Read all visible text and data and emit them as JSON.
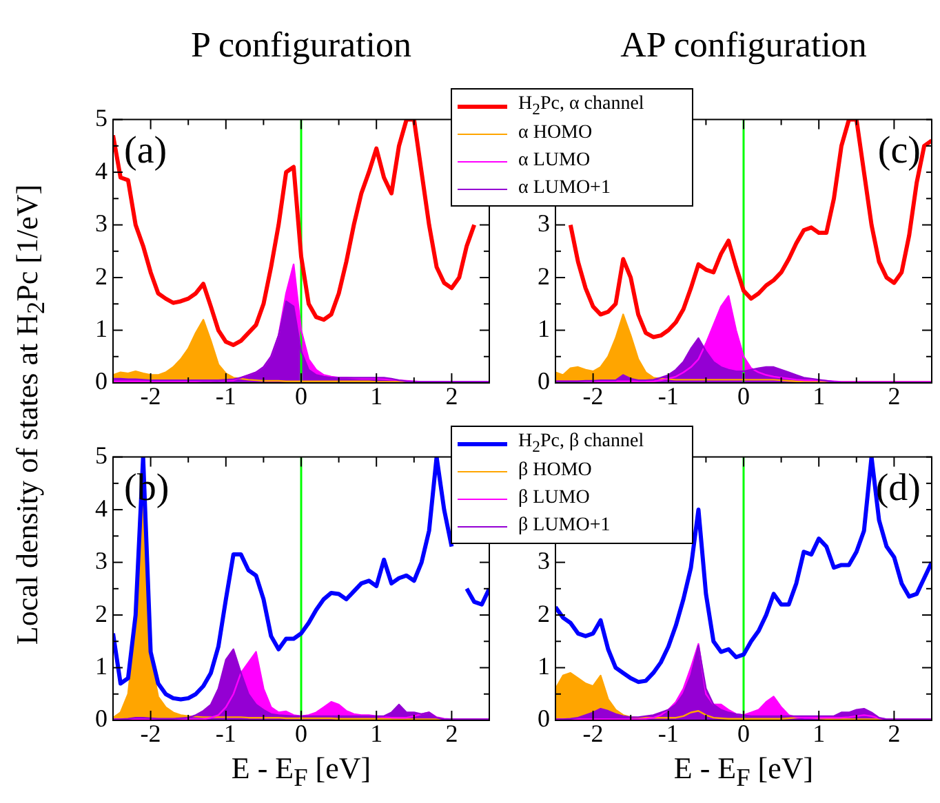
{
  "chart_data": [
    {
      "type": "line",
      "title": "P configuration",
      "ylabel": "Local density of states at H$_{2}$Pc [1/eV]",
      "annotations": [
        "(a)"
      ],
      "x": [
        -2.5,
        -2.4,
        -2.3,
        -2.2,
        -2.1,
        -2.0,
        -1.9,
        -1.8,
        -1.7,
        -1.6,
        -1.5,
        -1.4,
        -1.3,
        -1.2,
        -1.1,
        -1.0,
        -0.9,
        -0.8,
        -0.7,
        -0.6,
        -0.5,
        -0.4,
        -0.3,
        -0.2,
        -0.1,
        0,
        0.1,
        0.2,
        0.3,
        0.4,
        0.5,
        0.6,
        0.7,
        0.8,
        0.9,
        1.0,
        1.1,
        1.2,
        1.3,
        1.4,
        1.5,
        1.6,
        1.7,
        1.8,
        1.9,
        2.0,
        2.1,
        2.2,
        2.3,
        2.4,
        2.5
      ],
      "xlim": [
        -2.5,
        2.5
      ],
      "ylim": [
        0,
        5
      ],
      "xticks": [
        -2,
        {
          "value": -1.5,
          "label": null
        },
        -1,
        {
          "value": -0.5,
          "label": null
        },
        0,
        {
          "value": 0.5,
          "label": null
        },
        1,
        {
          "value": 1.5,
          "label": null
        },
        2
      ],
      "yticks": [
        0,
        {
          "value": 0.5,
          "label": null
        },
        1,
        {
          "value": 1.5,
          "label": null
        },
        2,
        {
          "value": 2.5,
          "label": null
        },
        3,
        {
          "value": 3.5,
          "label": null
        },
        4,
        {
          "value": 4.5,
          "label": null
        },
        5
      ],
      "ref_lines": [
        {
          "axis": "x",
          "value": 0,
          "color": "#00ff00"
        }
      ],
      "series": [
        {
          "type": "line",
          "color": "#ff0000",
          "values": [
            4.7,
            3.9,
            3.85,
            3.0,
            2.6,
            2.1,
            1.7,
            1.6,
            1.52,
            1.55,
            1.6,
            1.7,
            1.88,
            1.45,
            1.0,
            0.78,
            0.72,
            0.8,
            0.95,
            1.1,
            1.5,
            2.2,
            3.0,
            4.0,
            4.1,
            2.4,
            1.5,
            1.25,
            1.2,
            1.3,
            1.7,
            2.3,
            3.0,
            3.6,
            4.0,
            4.45,
            3.9,
            3.6,
            4.5,
            5,
            5,
            4.0,
            3.0,
            2.2,
            1.9,
            1.8,
            2.0,
            2.6,
            3.0,
            null,
            null
          ]
        },
        {
          "type": "area",
          "color": "#ffa500",
          "values": [
            0.15,
            0.2,
            0.18,
            0.22,
            0.18,
            0.15,
            0.15,
            0.2,
            0.3,
            0.45,
            0.65,
            0.95,
            1.2,
            0.8,
            0.35,
            0.18,
            0.1,
            0.08,
            0.06,
            0.05,
            0.04,
            0.04,
            0.04,
            0.03,
            0.03,
            0.03,
            0.03,
            0.03,
            0.03,
            0.03,
            0.03,
            0.03,
            0.03,
            0.03,
            0.03,
            0.02,
            0.02,
            0.02,
            0.02,
            0.02,
            0.01,
            0.01,
            0.01,
            0.01,
            0.01,
            0.01,
            0.01,
            0.01,
            0.01,
            0.01,
            0.01
          ]
        },
        {
          "type": "area",
          "color": "#ff00ff",
          "values": [
            0.03,
            0.03,
            0.03,
            0.03,
            0.03,
            0.03,
            0.03,
            0.03,
            0.03,
            0.03,
            0.03,
            0.03,
            0.04,
            0.04,
            0.05,
            0.05,
            0.05,
            0.1,
            0.15,
            0.2,
            0.3,
            0.5,
            0.9,
            1.7,
            2.25,
            1.0,
            0.45,
            0.25,
            0.15,
            0.12,
            0.1,
            0.1,
            0.09,
            0.08,
            0.08,
            0.08,
            0.07,
            0.06,
            0.05,
            0.04,
            0.03,
            0.02,
            0.02,
            0.02,
            0.02,
            0.02,
            0.02,
            0.02,
            0.02,
            0.02,
            0.02
          ]
        },
        {
          "type": "area",
          "color": "#9400d3",
          "values": [
            0.08,
            0.08,
            0.07,
            0.07,
            0.06,
            0.05,
            0.05,
            0.05,
            0.05,
            0.05,
            0.05,
            0.05,
            0.05,
            0.05,
            0.05,
            0.06,
            0.07,
            0.1,
            0.15,
            0.2,
            0.3,
            0.5,
            0.9,
            1.55,
            1.45,
            0.6,
            0.25,
            0.15,
            0.12,
            0.1,
            0.1,
            0.1,
            0.1,
            0.1,
            0.1,
            0.1,
            0.1,
            0.08,
            0.05,
            0.03,
            0.02,
            0.02,
            0.02,
            0.02,
            0.02,
            0.02,
            0.02,
            0.02,
            0.02,
            0.02,
            0.02
          ]
        }
      ]
    },
    {
      "type": "line",
      "title": "AP configuration",
      "annotations": [
        "(c)"
      ],
      "legend": "top left",
      "x": [
        -2.5,
        -2.4,
        -2.3,
        -2.2,
        -2.1,
        -2.0,
        -1.9,
        -1.8,
        -1.7,
        -1.6,
        -1.5,
        -1.4,
        -1.3,
        -1.2,
        -1.1,
        -1.0,
        -0.9,
        -0.8,
        -0.7,
        -0.6,
        -0.5,
        -0.4,
        -0.3,
        -0.2,
        -0.1,
        0,
        0.1,
        0.2,
        0.3,
        0.4,
        0.5,
        0.6,
        0.7,
        0.8,
        0.9,
        1.0,
        1.1,
        1.2,
        1.3,
        1.4,
        1.5,
        1.6,
        1.7,
        1.8,
        1.9,
        2.0,
        2.1,
        2.2,
        2.3,
        2.4,
        2.5
      ],
      "xlim": [
        -2.5,
        2.5
      ],
      "ylim": [
        0,
        5
      ],
      "xticks": [
        -2,
        {
          "value": -1.5,
          "label": null
        },
        -1,
        {
          "value": -0.5,
          "label": null
        },
        0,
        {
          "value": 0.5,
          "label": null
        },
        1,
        {
          "value": 1.5,
          "label": null
        },
        2
      ],
      "yticks": [
        0,
        {
          "value": 0.5,
          "label": null
        },
        1,
        {
          "value": 1.5,
          "label": null
        },
        2,
        {
          "value": 2.5,
          "label": null
        },
        3,
        {
          "value": 3.5,
          "label": null
        },
        {
          "value": 4,
          "label": null
        },
        {
          "value": 4.5,
          "label": null
        },
        {
          "value": 5,
          "label": null
        }
      ],
      "ref_lines": [
        {
          "axis": "x",
          "value": 0,
          "color": "#00ff00"
        }
      ],
      "series": [
        {
          "type": "line",
          "name": "H$_{2}$Pc, α channel",
          "color": "#ff0000",
          "values": [
            null,
            null,
            3.0,
            2.3,
            1.8,
            1.45,
            1.3,
            1.35,
            1.5,
            2.35,
            2.0,
            1.3,
            0.95,
            0.87,
            0.9,
            1.0,
            1.15,
            1.4,
            1.8,
            2.25,
            2.15,
            2.1,
            2.45,
            2.7,
            2.2,
            1.75,
            1.6,
            1.7,
            1.85,
            1.95,
            2.1,
            2.35,
            2.65,
            2.9,
            2.95,
            2.85,
            2.85,
            3.5,
            4.5,
            5,
            5,
            4.0,
            3.0,
            2.3,
            2.0,
            1.9,
            2.1,
            2.8,
            3.8,
            4.5,
            4.6
          ]
        },
        {
          "type": "area",
          "name": "α HOMO",
          "color": "#ffa500",
          "values": [
            0.2,
            0.15,
            0.28,
            0.3,
            0.25,
            0.22,
            0.3,
            0.5,
            0.85,
            1.3,
            0.9,
            0.45,
            0.2,
            0.1,
            0.08,
            0.07,
            0.06,
            0.06,
            0.06,
            0.06,
            0.06,
            0.06,
            0.06,
            0.06,
            0.06,
            0.06,
            0.06,
            0.06,
            0.06,
            0.06,
            0.05,
            0.04,
            0.03,
            0.02,
            0.02,
            0.02,
            0.02,
            0.02,
            0.02,
            0.02,
            0.02,
            0.02,
            0.02,
            0.02,
            0.02,
            0.02,
            0.02,
            0.02,
            0.02,
            0.02,
            0.02
          ]
        },
        {
          "type": "area",
          "name": "α LUMO",
          "color": "#ff00ff",
          "values": [
            0.03,
            0.03,
            0.03,
            0.03,
            0.03,
            0.03,
            0.03,
            0.03,
            0.03,
            0.03,
            0.03,
            0.03,
            0.03,
            0.03,
            0.05,
            0.08,
            0.12,
            0.2,
            0.3,
            0.45,
            0.75,
            1.1,
            1.45,
            1.65,
            1.0,
            0.5,
            0.28,
            0.2,
            0.15,
            0.12,
            0.1,
            0.08,
            0.06,
            0.05,
            0.05,
            0.05,
            0.04,
            0.03,
            0.02,
            0.02,
            0.02,
            0.02,
            0.02,
            0.02,
            0.02,
            0.02,
            0.02,
            0.02,
            0.02,
            0.02,
            0.02
          ]
        },
        {
          "type": "area",
          "name": "α LUMO+1",
          "color": "#9400d3",
          "values": [
            0.03,
            0.03,
            0.03,
            0.03,
            0.04,
            0.04,
            0.05,
            0.05,
            0.05,
            0.15,
            0.08,
            0.05,
            0.05,
            0.06,
            0.1,
            0.15,
            0.25,
            0.4,
            0.65,
            0.85,
            0.6,
            0.4,
            0.3,
            0.25,
            0.22,
            0.22,
            0.25,
            0.28,
            0.3,
            0.3,
            0.25,
            0.2,
            0.15,
            0.1,
            0.08,
            0.06,
            0.04,
            0.02,
            0.01,
            0.01,
            0.01,
            0.01,
            0.01,
            0.01,
            0.01,
            0.01,
            0.01,
            0.01,
            0.01,
            0.01,
            0.01
          ]
        }
      ]
    },
    {
      "type": "line",
      "xlabel": "E - E$_{F}$ [eV]",
      "annotations": [
        "(b)"
      ],
      "x": [
        -2.5,
        -2.4,
        -2.3,
        -2.2,
        -2.1,
        -2.0,
        -1.9,
        -1.8,
        -1.7,
        -1.6,
        -1.5,
        -1.4,
        -1.3,
        -1.2,
        -1.1,
        -1.0,
        -0.9,
        -0.8,
        -0.7,
        -0.6,
        -0.5,
        -0.4,
        -0.3,
        -0.2,
        -0.1,
        0,
        0.1,
        0.2,
        0.3,
        0.4,
        0.5,
        0.6,
        0.7,
        0.8,
        0.9,
        1.0,
        1.1,
        1.2,
        1.3,
        1.4,
        1.5,
        1.6,
        1.7,
        1.8,
        1.9,
        2.0,
        2.1,
        2.2,
        2.3,
        2.4,
        2.5
      ],
      "xlim": [
        -2.5,
        2.5
      ],
      "ylim": [
        0,
        5
      ],
      "xticks": [
        -2,
        {
          "value": -1.5,
          "label": null
        },
        -1,
        {
          "value": -0.5,
          "label": null
        },
        0,
        {
          "value": 0.5,
          "label": null
        },
        1,
        {
          "value": 1.5,
          "label": null
        },
        2
      ],
      "yticks": [
        0,
        {
          "value": 0.5,
          "label": null
        },
        1,
        {
          "value": 1.5,
          "label": null
        },
        2,
        {
          "value": 2.5,
          "label": null
        },
        3,
        {
          "value": 3.5,
          "label": null
        },
        4,
        {
          "value": 4.5,
          "label": null
        },
        5
      ],
      "ref_lines": [
        {
          "axis": "x",
          "value": 0,
          "color": "#00ff00"
        }
      ],
      "series": [
        {
          "type": "line",
          "color": "#0000ff",
          "values": [
            1.65,
            0.7,
            0.8,
            2.0,
            5,
            1.3,
            0.7,
            0.5,
            0.42,
            0.4,
            0.42,
            0.5,
            0.65,
            0.9,
            1.4,
            2.3,
            3.15,
            3.15,
            2.85,
            2.75,
            2.3,
            1.6,
            1.35,
            1.55,
            1.55,
            1.65,
            1.85,
            2.1,
            2.3,
            2.42,
            2.4,
            2.3,
            2.45,
            2.6,
            2.65,
            2.55,
            3.05,
            2.6,
            2.7,
            2.75,
            2.65,
            3.0,
            3.6,
            5,
            4.0,
            3.3,
            null,
            2.5,
            2.25,
            2.2,
            2.5
          ]
        },
        {
          "type": "area",
          "color": "#ffa500",
          "values": [
            0.05,
            0.15,
            0.5,
            1.8,
            4.7,
            1.2,
            0.45,
            0.25,
            0.15,
            0.1,
            0.08,
            0.07,
            0.06,
            0.06,
            0.06,
            0.06,
            0.06,
            0.06,
            0.05,
            0.05,
            0.05,
            0.05,
            0.05,
            0.04,
            0.04,
            0.04,
            0.04,
            0.04,
            0.04,
            0.04,
            0.03,
            0.03,
            0.03,
            0.03,
            0.03,
            0.03,
            0.03,
            0.03,
            0.02,
            0.02,
            0.02,
            0.02,
            0.02,
            0.02,
            0.02,
            0.02,
            0.02,
            0.02,
            0.02,
            0.02,
            0.02
          ]
        },
        {
          "type": "area",
          "color": "#ff00ff",
          "values": [
            0.02,
            0.02,
            0.02,
            0.02,
            0.02,
            0.02,
            0.02,
            0.02,
            0.02,
            0.02,
            0.02,
            0.02,
            0.02,
            0.05,
            0.1,
            0.25,
            0.5,
            0.9,
            1.1,
            1.3,
            0.6,
            0.25,
            0.15,
            0.17,
            0.1,
            0.08,
            0.1,
            0.15,
            0.25,
            0.35,
            0.3,
            0.18,
            0.12,
            0.1,
            0.1,
            0.08,
            0.06,
            0.05,
            0.05,
            0.05,
            0.08,
            0.12,
            0.15,
            0.06,
            0.03,
            0.02,
            0.02,
            0.02,
            0.02,
            0.02,
            0.02
          ]
        },
        {
          "type": "area",
          "color": "#9400d3",
          "values": [
            0.02,
            0.02,
            0.03,
            0.05,
            0.05,
            0.04,
            0.03,
            0.03,
            0.03,
            0.04,
            0.05,
            0.1,
            0.18,
            0.3,
            0.6,
            1.15,
            1.35,
            0.9,
            0.5,
            0.3,
            0.2,
            0.12,
            0.1,
            0.09,
            0.08,
            0.08,
            0.08,
            0.08,
            0.08,
            0.08,
            0.08,
            0.08,
            0.08,
            0.08,
            0.08,
            0.08,
            0.08,
            0.15,
            0.3,
            0.15,
            0.15,
            0.12,
            0.15,
            0.05,
            0.02,
            0.02,
            0.02,
            0.02,
            0.02,
            0.02,
            0.02
          ]
        }
      ]
    },
    {
      "type": "line",
      "xlabel": "E - E$_{F}$ [eV]",
      "annotations": [
        "(d)"
      ],
      "legend": "top left",
      "x": [
        -2.5,
        -2.4,
        -2.3,
        -2.2,
        -2.1,
        -2.0,
        -1.9,
        -1.8,
        -1.7,
        -1.6,
        -1.5,
        -1.4,
        -1.3,
        -1.2,
        -1.1,
        -1.0,
        -0.9,
        -0.8,
        -0.7,
        -0.6,
        -0.5,
        -0.4,
        -0.3,
        -0.2,
        -0.1,
        0,
        0.1,
        0.2,
        0.3,
        0.4,
        0.5,
        0.6,
        0.7,
        0.8,
        0.9,
        1.0,
        1.1,
        1.2,
        1.3,
        1.4,
        1.5,
        1.6,
        1.7,
        1.8,
        1.9,
        2.0,
        2.1,
        2.2,
        2.3,
        2.4,
        2.5
      ],
      "xlim": [
        -2.5,
        2.5
      ],
      "ylim": [
        0,
        5
      ],
      "xticks": [
        -2,
        {
          "value": -1.5,
          "label": null
        },
        -1,
        {
          "value": -0.5,
          "label": null
        },
        0,
        {
          "value": 0.5,
          "label": null
        },
        1,
        {
          "value": 1.5,
          "label": null
        },
        2
      ],
      "yticks": [
        0,
        {
          "value": 0.5,
          "label": null
        },
        1,
        {
          "value": 1.5,
          "label": null
        },
        2,
        {
          "value": 2.5,
          "label": null
        },
        3,
        {
          "value": 3.5,
          "label": null
        },
        {
          "value": 4,
          "label": null
        },
        {
          "value": 4.5,
          "label": null
        },
        {
          "value": 5,
          "label": null
        }
      ],
      "ref_lines": [
        {
          "axis": "x",
          "value": 0,
          "color": "#00ff00"
        }
      ],
      "series": [
        {
          "type": "line",
          "name": "H$_{2}$Pc, β channel",
          "color": "#0000ff",
          "values": [
            2.15,
            1.95,
            1.85,
            1.65,
            1.6,
            1.65,
            1.9,
            1.35,
            1.0,
            0.9,
            0.8,
            0.73,
            0.75,
            0.9,
            1.1,
            1.4,
            1.8,
            2.3,
            2.9,
            4.0,
            2.4,
            1.5,
            1.3,
            1.35,
            1.2,
            1.25,
            1.5,
            1.7,
            2.0,
            2.4,
            2.2,
            2.2,
            2.6,
            3.2,
            3.15,
            3.45,
            3.3,
            2.9,
            2.95,
            2.95,
            3.2,
            3.6,
            5,
            3.8,
            3.3,
            3.1,
            2.6,
            2.35,
            2.4,
            2.7,
            3.0
          ]
        },
        {
          "type": "area",
          "name": "β HOMO",
          "color": "#ffa500",
          "values": [
            0.6,
            0.85,
            0.9,
            0.8,
            0.7,
            0.65,
            0.85,
            0.4,
            0.2,
            0.1,
            0.06,
            0.05,
            0.05,
            0.05,
            0.05,
            0.05,
            0.05,
            0.08,
            0.15,
            0.18,
            0.1,
            0.05,
            0.04,
            0.03,
            0.03,
            0.03,
            0.03,
            0.03,
            0.03,
            0.03,
            0.03,
            0.04,
            0.05,
            0.06,
            0.05,
            0.04,
            0.03,
            0.02,
            0.02,
            0.02,
            0.02,
            0.02,
            0.02,
            0.02,
            0.02,
            0.02,
            0.02,
            0.02,
            0.02,
            0.02,
            0.02
          ]
        },
        {
          "type": "area",
          "name": "β LUMO",
          "color": "#ff00ff",
          "values": [
            0.02,
            0.02,
            0.02,
            0.02,
            0.02,
            0.02,
            0.02,
            0.02,
            0.02,
            0.02,
            0.02,
            0.02,
            0.03,
            0.05,
            0.1,
            0.2,
            0.35,
            0.6,
            1.0,
            1.45,
            0.5,
            0.3,
            0.3,
            0.2,
            0.12,
            0.1,
            0.15,
            0.2,
            0.35,
            0.45,
            0.25,
            0.1,
            0.06,
            0.05,
            0.05,
            0.05,
            0.05,
            0.05,
            0.05,
            0.06,
            0.08,
            0.1,
            0.08,
            0.04,
            0.02,
            0.02,
            0.02,
            0.02,
            0.02,
            0.02,
            0.02
          ]
        },
        {
          "type": "area",
          "name": "β LUMO+1",
          "color": "#9400d3",
          "values": [
            0.02,
            0.02,
            0.03,
            0.05,
            0.1,
            0.15,
            0.22,
            0.18,
            0.12,
            0.08,
            0.06,
            0.06,
            0.08,
            0.1,
            0.15,
            0.2,
            0.3,
            0.5,
            0.85,
            1.42,
            0.6,
            0.3,
            0.2,
            0.15,
            0.12,
            0.1,
            0.08,
            0.08,
            0.08,
            0.08,
            0.08,
            0.08,
            0.08,
            0.08,
            0.08,
            0.08,
            0.08,
            0.08,
            0.15,
            0.15,
            0.2,
            0.22,
            0.15,
            0.05,
            0.02,
            0.02,
            0.02,
            0.02,
            0.02,
            0.02,
            0.02
          ]
        }
      ]
    }
  ]
}
